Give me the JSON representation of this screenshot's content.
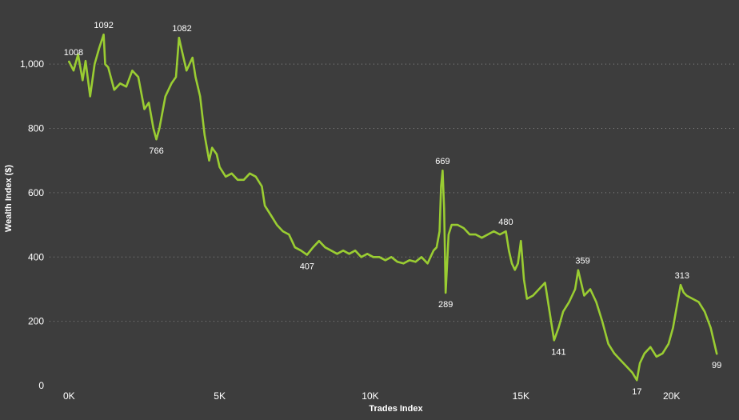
{
  "chart_data": {
    "type": "line",
    "title": "",
    "xlabel": "Trades Index",
    "ylabel": "Wealth Index ($)",
    "xlim": [
      -300,
      22000
    ],
    "ylim": [
      0,
      1100
    ],
    "grid": true,
    "line_color": "#9acd32",
    "x_ticks": [
      {
        "value": 0,
        "label": "0K"
      },
      {
        "value": 5000,
        "label": "5K"
      },
      {
        "value": 10000,
        "label": "10K"
      },
      {
        "value": 15000,
        "label": "15K"
      },
      {
        "value": 20000,
        "label": "20K"
      }
    ],
    "y_ticks": [
      {
        "value": 0,
        "label": "0"
      },
      {
        "value": 200,
        "label": "200"
      },
      {
        "value": 400,
        "label": "400"
      },
      {
        "value": 600,
        "label": "600"
      },
      {
        "value": 800,
        "label": "800"
      },
      {
        "value": 1000,
        "label": "1,000"
      }
    ],
    "series": [
      {
        "x": [
          0,
          150,
          300,
          450,
          550,
          700,
          850,
          1000,
          1150,
          1200,
          1300,
          1500,
          1700,
          1900,
          2100,
          2300,
          2500,
          2650,
          2800,
          2900,
          3000,
          3200,
          3400,
          3550,
          3650,
          3750,
          3900,
          4100,
          4200,
          4350,
          4500,
          4650,
          4750,
          4900,
          5000,
          5200,
          5400,
          5600,
          5800,
          6000,
          6200,
          6400,
          6500,
          6700,
          6900,
          7100,
          7300,
          7500,
          7700,
          7900,
          8100,
          8300,
          8500,
          8700,
          8900,
          9100,
          9300,
          9500,
          9700,
          9900,
          10100,
          10300,
          10500,
          10700,
          10900,
          11100,
          11300,
          11500,
          11700,
          11900,
          12000,
          12100,
          12200,
          12300,
          12350,
          12400,
          12450,
          12500,
          12600,
          12700,
          12900,
          13100,
          13300,
          13500,
          13700,
          13900,
          14100,
          14300,
          14500,
          14600,
          14700,
          14800,
          14900,
          15000,
          15100,
          15200,
          15400,
          15600,
          15800,
          16000,
          16100,
          16250,
          16400,
          16600,
          16800,
          16900,
          17100,
          17300,
          17500,
          17700,
          17900,
          18100,
          18300,
          18500,
          18700,
          18850,
          18950,
          19100,
          19300,
          19500,
          19700,
          19900,
          20050,
          20200,
          20300,
          20400,
          20500,
          20700,
          20900,
          21100,
          21300,
          21500
        ],
        "y": [
          1008,
          980,
          1030,
          950,
          1010,
          900,
          1000,
          1050,
          1092,
          1000,
          990,
          920,
          940,
          930,
          980,
          960,
          860,
          880,
          800,
          766,
          800,
          900,
          940,
          960,
          1082,
          1040,
          980,
          1020,
          960,
          900,
          780,
          700,
          740,
          720,
          680,
          650,
          660,
          640,
          640,
          660,
          650,
          620,
          560,
          530,
          500,
          480,
          470,
          430,
          420,
          407,
          430,
          450,
          430,
          420,
          410,
          420,
          410,
          420,
          400,
          410,
          400,
          400,
          390,
          400,
          385,
          380,
          390,
          385,
          400,
          380,
          400,
          420,
          430,
          480,
          620,
          669,
          550,
          289,
          470,
          500,
          500,
          490,
          470,
          470,
          460,
          470,
          480,
          470,
          480,
          420,
          380,
          360,
          380,
          450,
          330,
          270,
          280,
          300,
          320,
          200,
          141,
          180,
          230,
          260,
          300,
          359,
          280,
          300,
          260,
          200,
          130,
          100,
          80,
          60,
          40,
          17,
          70,
          100,
          120,
          90,
          100,
          130,
          180,
          260,
          313,
          290,
          280,
          270,
          260,
          230,
          180,
          99
        ]
      }
    ],
    "annotations": [
      {
        "x": 150,
        "y": 1008,
        "label": "1008",
        "pos": "above"
      },
      {
        "x": 1150,
        "y": 1092,
        "label": "1092",
        "pos": "above"
      },
      {
        "x": 2900,
        "y": 766,
        "label": "766",
        "pos": "below"
      },
      {
        "x": 3750,
        "y": 1082,
        "label": "1082",
        "pos": "above"
      },
      {
        "x": 7900,
        "y": 407,
        "label": "407",
        "pos": "below"
      },
      {
        "x": 12400,
        "y": 669,
        "label": "669",
        "pos": "above"
      },
      {
        "x": 12500,
        "y": 289,
        "label": "289",
        "pos": "below"
      },
      {
        "x": 14500,
        "y": 480,
        "label": "480",
        "pos": "above"
      },
      {
        "x": 16250,
        "y": 141,
        "label": "141",
        "pos": "below"
      },
      {
        "x": 17050,
        "y": 359,
        "label": "359",
        "pos": "above"
      },
      {
        "x": 18850,
        "y": 17,
        "label": "17",
        "pos": "below"
      },
      {
        "x": 20350,
        "y": 313,
        "label": "313",
        "pos": "above"
      },
      {
        "x": 21500,
        "y": 99,
        "label": "99",
        "pos": "below"
      }
    ]
  }
}
